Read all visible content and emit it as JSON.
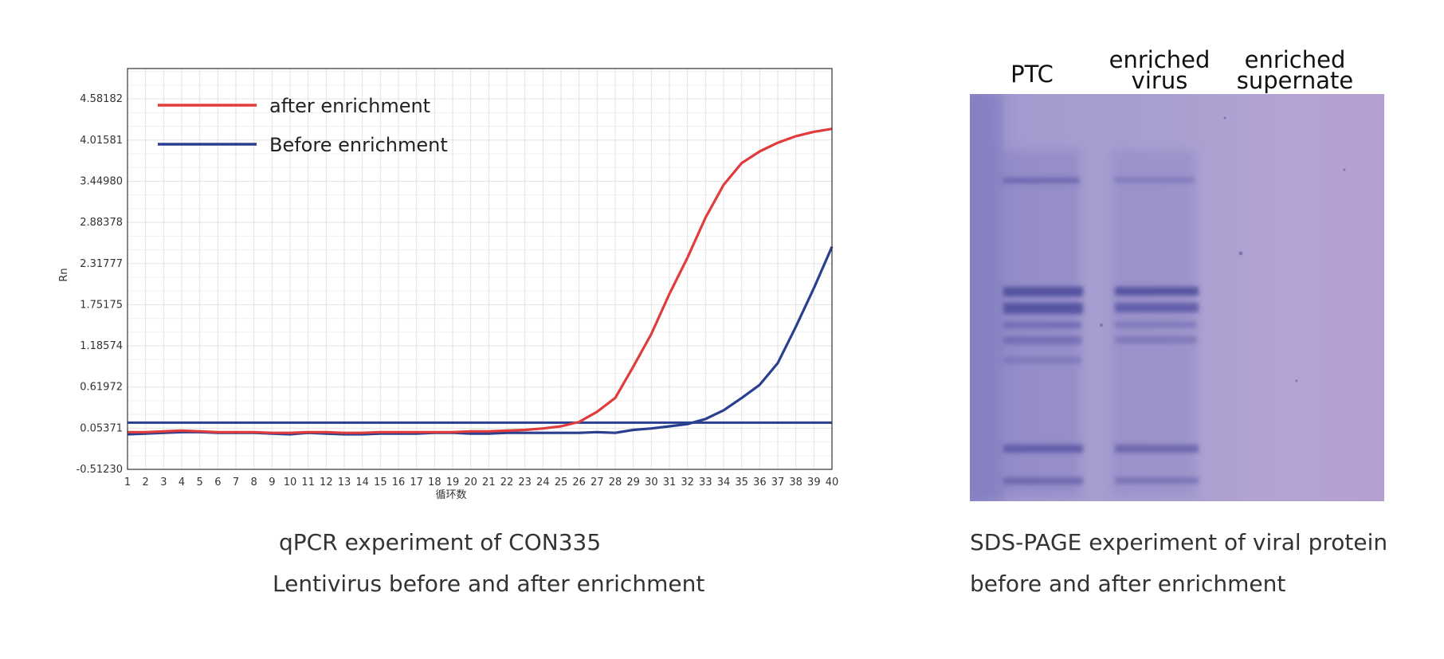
{
  "chart_data": {
    "type": "line",
    "title": "",
    "xlabel": "循环数",
    "ylabel": "Rn",
    "xlim": [
      1,
      40
    ],
    "ylim": [
      -0.5123,
      5.0
    ],
    "x_ticks": [
      "1",
      "2",
      "3",
      "4",
      "5",
      "6",
      "7",
      "8",
      "9",
      "10",
      "11",
      "12",
      "13",
      "14",
      "15",
      "16",
      "17",
      "18",
      "19",
      "20",
      "21",
      "22",
      "23",
      "24",
      "25",
      "26",
      "27",
      "28",
      "29",
      "30",
      "31",
      "32",
      "33",
      "34",
      "35",
      "36",
      "37",
      "38",
      "39",
      "40"
    ],
    "y_ticks": [
      {
        "value": -0.5123,
        "label": "-0.51230"
      },
      {
        "value": 0.05371,
        "label": "0.05371"
      },
      {
        "value": 0.61972,
        "label": "0.61972"
      },
      {
        "value": 1.18574,
        "label": "1.18574"
      },
      {
        "value": 1.75175,
        "label": "1.75175"
      },
      {
        "value": 2.31777,
        "label": "2.31777"
      },
      {
        "value": 2.88378,
        "label": "2.88378"
      },
      {
        "value": 3.4498,
        "label": "3.44980"
      },
      {
        "value": 4.01581,
        "label": "4.01581"
      },
      {
        "value": 4.58182,
        "label": "4.58182"
      }
    ],
    "grid": true,
    "legend": "top-left",
    "threshold": {
      "value": 0.13,
      "color": "#2a3f8f"
    },
    "series": [
      {
        "name": "after enrichment",
        "color": "#e03c3c",
        "x": [
          1,
          2,
          3,
          4,
          5,
          6,
          7,
          8,
          9,
          10,
          11,
          12,
          13,
          14,
          15,
          16,
          17,
          18,
          19,
          20,
          21,
          22,
          23,
          24,
          25,
          26,
          27,
          28,
          29,
          30,
          31,
          32,
          33,
          34,
          35,
          36,
          37,
          38,
          39,
          40
        ],
        "y": [
          0.0,
          0.0,
          0.01,
          0.02,
          0.01,
          0.0,
          0.0,
          0.0,
          -0.01,
          -0.01,
          0.0,
          0.0,
          -0.01,
          -0.01,
          0.0,
          0.0,
          0.0,
          0.0,
          0.0,
          0.01,
          0.01,
          0.02,
          0.03,
          0.05,
          0.08,
          0.14,
          0.28,
          0.47,
          0.9,
          1.35,
          1.9,
          2.4,
          2.95,
          3.4,
          3.7,
          3.86,
          3.98,
          4.07,
          4.13,
          4.17
        ]
      },
      {
        "name": "Before enrichment",
        "color": "#2a3f8f",
        "x": [
          1,
          2,
          3,
          4,
          5,
          6,
          7,
          8,
          9,
          10,
          11,
          12,
          13,
          14,
          15,
          16,
          17,
          18,
          19,
          20,
          21,
          22,
          23,
          24,
          25,
          26,
          27,
          28,
          29,
          30,
          31,
          32,
          33,
          34,
          35,
          36,
          37,
          38,
          39,
          40
        ],
        "y": [
          -0.03,
          -0.02,
          -0.01,
          0.0,
          0.0,
          -0.01,
          -0.01,
          -0.01,
          -0.02,
          -0.03,
          -0.01,
          -0.02,
          -0.03,
          -0.03,
          -0.02,
          -0.02,
          -0.02,
          -0.01,
          -0.01,
          -0.02,
          -0.02,
          -0.01,
          -0.01,
          -0.01,
          -0.01,
          -0.01,
          0.0,
          -0.01,
          0.03,
          0.05,
          0.08,
          0.11,
          0.18,
          0.3,
          0.47,
          0.65,
          0.95,
          1.45,
          1.98,
          2.55
        ]
      }
    ]
  },
  "captions": {
    "qpcr_line1": "qPCR experiment of CON335",
    "qpcr_line2": "Lentivirus before and after enrichment",
    "sds_line1": "SDS-PAGE experiment of viral protein",
    "sds_line2": "before and after enrichment"
  },
  "gel": {
    "lanes": [
      {
        "label_lines": [
          "PTC"
        ]
      },
      {
        "label_lines": [
          "enriched",
          "virus"
        ]
      },
      {
        "label_lines": [
          "enriched",
          "supernate"
        ]
      }
    ],
    "colors": {
      "background": "#9c8fc8",
      "band": "#4b4a9a"
    }
  }
}
